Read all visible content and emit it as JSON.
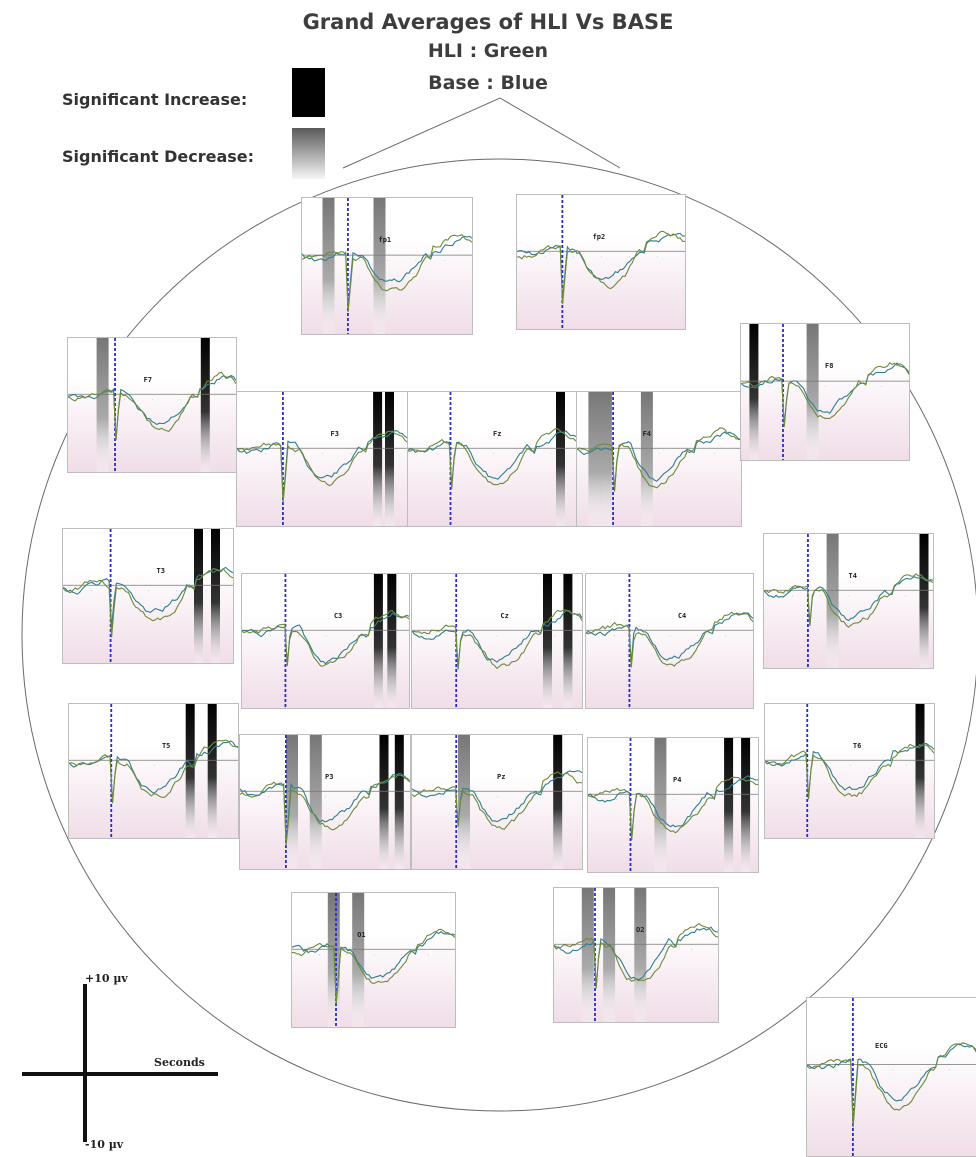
{
  "header": {
    "title": "Grand Averages of HLI Vs BASE",
    "subtitle_hli": "HLI : Green",
    "subtitle_base": "Base : Blue"
  },
  "legend": {
    "increase_label": "Significant Increase:",
    "decrease_label": "Significant Decrease:"
  },
  "colors": {
    "hli": "#6f8a3a",
    "base": "#2f7f8c",
    "stimulus_marker": "#2a2ad0",
    "panel_bg_bottom": "#f0dde8",
    "increase": "#000000",
    "decrease": "#777777"
  },
  "scale": {
    "y_top": "+10 µv",
    "y_bottom": "-10 µv",
    "x_label": "Seconds"
  },
  "electrodes": [
    {
      "id": "fp1",
      "label": "fp1",
      "seed": 3,
      "bars": [
        {
          "o": 0.15,
          "k": "dec"
        },
        {
          "o": 0.45,
          "k": "dec"
        }
      ]
    },
    {
      "id": "fp2",
      "label": "fp2",
      "seed": 7,
      "bars": []
    },
    {
      "id": "f7",
      "label": "F7",
      "seed": 11,
      "bars": [
        {
          "o": 0.2,
          "k": "dec"
        },
        {
          "o": 0.82,
          "k": "inc"
        }
      ]
    },
    {
      "id": "f3",
      "label": "F3",
      "seed": 13,
      "bars": [
        {
          "o": 0.83,
          "k": "inc"
        },
        {
          "o": 0.9,
          "k": "inc"
        }
      ]
    },
    {
      "id": "fz",
      "label": "Fz",
      "seed": 17,
      "bars": [
        {
          "o": 0.9,
          "k": "inc"
        }
      ]
    },
    {
      "id": "f4",
      "label": "F4",
      "seed": 19,
      "bars": [
        {
          "o": 0.1,
          "k": "dec"
        },
        {
          "o": 0.17,
          "k": "dec"
        },
        {
          "o": 0.42,
          "k": "dec"
        }
      ]
    },
    {
      "id": "f8",
      "label": "F8",
      "seed": 23,
      "bars": [
        {
          "o": 0.08,
          "k": "inc"
        },
        {
          "o": 0.42,
          "k": "dec"
        }
      ]
    },
    {
      "id": "t3",
      "label": "T3",
      "seed": 29,
      "bars": [
        {
          "o": 0.8,
          "k": "inc"
        },
        {
          "o": 0.9,
          "k": "inc"
        }
      ]
    },
    {
      "id": "c3",
      "label": "C3",
      "seed": 31,
      "bars": [
        {
          "o": 0.82,
          "k": "inc"
        },
        {
          "o": 0.9,
          "k": "inc"
        }
      ]
    },
    {
      "id": "cz",
      "label": "Cz",
      "seed": 37,
      "bars": [
        {
          "o": 0.8,
          "k": "inc"
        },
        {
          "o": 0.92,
          "k": "inc"
        }
      ]
    },
    {
      "id": "c4",
      "label": "C4",
      "seed": 41,
      "bars": []
    },
    {
      "id": "t4",
      "label": "T4",
      "seed": 43,
      "bars": [
        {
          "o": 0.4,
          "k": "dec"
        },
        {
          "o": 0.95,
          "k": "inc"
        }
      ]
    },
    {
      "id": "t5",
      "label": "T5",
      "seed": 47,
      "bars": [
        {
          "o": 0.72,
          "k": "inc"
        },
        {
          "o": 0.85,
          "k": "inc"
        }
      ]
    },
    {
      "id": "p3",
      "label": "P3",
      "seed": 53,
      "bars": [
        {
          "o": 0.3,
          "k": "dec"
        },
        {
          "o": 0.44,
          "k": "dec"
        },
        {
          "o": 0.85,
          "k": "inc"
        },
        {
          "o": 0.94,
          "k": "inc"
        }
      ]
    },
    {
      "id": "pz",
      "label": "Pz",
      "seed": 59,
      "bars": [
        {
          "o": 0.3,
          "k": "dec"
        },
        {
          "o": 0.86,
          "k": "inc"
        }
      ]
    },
    {
      "id": "p4",
      "label": "P4",
      "seed": 61,
      "bars": [
        {
          "o": 0.42,
          "k": "dec"
        },
        {
          "o": 0.83,
          "k": "inc"
        },
        {
          "o": 0.93,
          "k": "inc"
        }
      ]
    },
    {
      "id": "t6",
      "label": "T6",
      "seed": 67,
      "bars": [
        {
          "o": 0.92,
          "k": "inc"
        }
      ]
    },
    {
      "id": "o1",
      "label": "O1",
      "seed": 71,
      "bars": [
        {
          "o": 0.25,
          "k": "dec"
        },
        {
          "o": 0.4,
          "k": "dec"
        }
      ]
    },
    {
      "id": "o2",
      "label": "O2",
      "seed": 73,
      "bars": [
        {
          "o": 0.2,
          "k": "dec"
        },
        {
          "o": 0.33,
          "k": "dec"
        },
        {
          "o": 0.52,
          "k": "dec"
        }
      ]
    },
    {
      "id": "ecg",
      "label": "ECG",
      "seed": 79,
      "bars": []
    }
  ]
}
